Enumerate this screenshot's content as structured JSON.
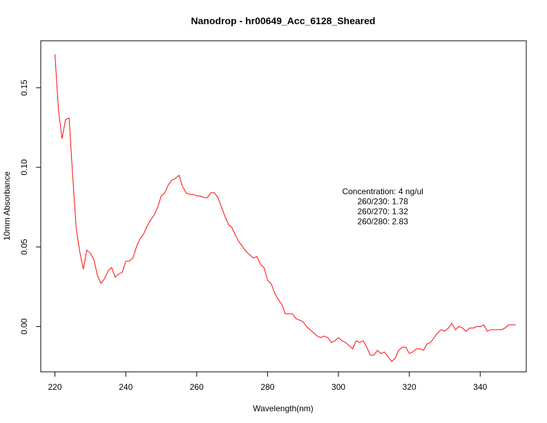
{
  "chart_data": {
    "type": "line",
    "title": "Nanodrop - hr00649_Acc_6128_Sheared",
    "xlabel": "Wavelength(nm)",
    "ylabel": "10mm Absorbance",
    "xlim": [
      216,
      353
    ],
    "ylim": [
      -0.0285,
      0.1795
    ],
    "xticks": [
      220,
      240,
      260,
      280,
      300,
      320,
      340
    ],
    "yticks": [
      0.0,
      0.05,
      0.1,
      0.15
    ],
    "ytick_labels": [
      "0.00",
      "0.05",
      "0.10",
      "0.15"
    ],
    "grid": false,
    "line_color": "#ff0000",
    "annotations": [
      "Concentration: 4 ng/ul",
      "260/230: 1.78",
      "260/270: 1.32",
      "260/280: 2.83"
    ],
    "annotation_anchor": [
      312.5,
      0.083
    ],
    "series": [
      {
        "x": [
          220,
          221,
          222,
          223,
          224,
          225,
          226,
          227,
          228,
          229,
          230,
          231,
          232,
          233,
          234,
          235,
          236,
          237,
          238,
          239,
          240,
          241,
          242,
          243,
          244,
          245,
          246,
          247,
          248,
          249,
          250,
          251,
          252,
          253,
          254,
          255,
          256,
          257,
          258,
          259,
          260,
          261,
          262,
          263,
          264,
          265,
          266,
          267,
          268,
          269,
          270,
          271,
          272,
          273,
          274,
          275,
          276,
          277,
          278,
          279,
          280,
          281,
          282,
          283,
          284,
          285,
          286,
          287,
          288,
          289,
          290,
          291,
          292,
          293,
          294,
          295,
          296,
          297,
          298,
          299,
          300,
          301,
          302,
          303,
          304,
          305,
          306,
          307,
          308,
          309,
          310,
          311,
          312,
          313,
          314,
          315,
          316,
          317,
          318,
          319,
          320,
          321,
          322,
          323,
          324,
          325,
          326,
          327,
          328,
          329,
          330,
          331,
          332,
          333,
          334,
          335,
          336,
          337,
          338,
          339,
          340,
          341,
          342,
          343,
          344,
          345,
          346,
          347,
          348,
          349,
          350
        ],
        "y": [
          0.171,
          0.136,
          0.118,
          0.13,
          0.131,
          0.095,
          0.062,
          0.047,
          0.036,
          0.048,
          0.046,
          0.042,
          0.032,
          0.027,
          0.03,
          0.035,
          0.037,
          0.031,
          0.033,
          0.034,
          0.041,
          0.041,
          0.043,
          0.05,
          0.055,
          0.058,
          0.063,
          0.067,
          0.07,
          0.075,
          0.082,
          0.084,
          0.089,
          0.092,
          0.093,
          0.095,
          0.088,
          0.084,
          0.083,
          0.083,
          0.082,
          0.082,
          0.081,
          0.081,
          0.084,
          0.084,
          0.081,
          0.075,
          0.069,
          0.064,
          0.062,
          0.057,
          0.053,
          0.05,
          0.047,
          0.045,
          0.043,
          0.044,
          0.039,
          0.037,
          0.029,
          0.027,
          0.021,
          0.017,
          0.014,
          0.008,
          0.008,
          0.008,
          0.005,
          0.004,
          0.003,
          0.0,
          -0.002,
          -0.004,
          -0.006,
          -0.007,
          -0.006,
          -0.007,
          -0.01,
          -0.009,
          -0.007,
          -0.009,
          -0.01,
          -0.012,
          -0.014,
          -0.009,
          -0.01,
          -0.009,
          -0.013,
          -0.018,
          -0.018,
          -0.015,
          -0.017,
          -0.016,
          -0.019,
          -0.022,
          -0.02,
          -0.015,
          -0.013,
          -0.013,
          -0.017,
          -0.016,
          -0.014,
          -0.014,
          -0.015,
          -0.011,
          -0.01,
          -0.007,
          -0.004,
          -0.002,
          -0.003,
          -0.001,
          0.002,
          -0.002,
          0.0,
          -0.001,
          -0.003,
          -0.001,
          -0.001,
          0.0,
          0.0,
          0.001,
          -0.003,
          -0.002,
          -0.002,
          -0.002,
          -0.002,
          -0.001,
          0.001,
          0.001,
          0.001
        ]
      }
    ]
  }
}
